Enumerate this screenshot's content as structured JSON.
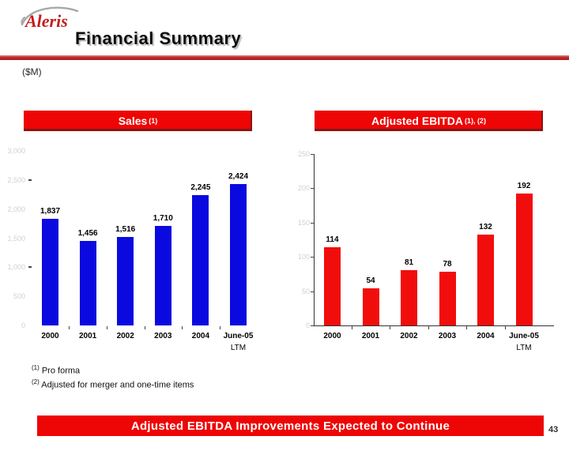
{
  "header": {
    "logo_text": "Aleris",
    "title": "Financial Summary",
    "unit_label": "($M)"
  },
  "chart_data": [
    {
      "type": "bar",
      "title_main": "Sales",
      "title_sup": "(1)",
      "categories": [
        "2000",
        "2001",
        "2002",
        "2003",
        "2004",
        "June-05"
      ],
      "last_category_note": "LTM",
      "values": [
        1837,
        1456,
        1516,
        1710,
        2245,
        2424
      ],
      "value_labels": [
        "1,837",
        "1,456",
        "1,516",
        "1,710",
        "2,245",
        "2,424"
      ],
      "ylim": [
        0,
        3000
      ],
      "ytick_labels": [
        "3,000",
        "2,500",
        "2,000",
        "1,500",
        "1,000",
        "500",
        "0"
      ],
      "bar_color": "#0a0ae0",
      "axis_visible": false,
      "legend": "none",
      "grid": "off"
    },
    {
      "type": "bar",
      "title_main": "Adjusted EBITDA",
      "title_sup": "(1), (2)",
      "categories": [
        "2000",
        "2001",
        "2002",
        "2003",
        "2004",
        "June-05"
      ],
      "last_category_note": "LTM",
      "values": [
        114,
        54,
        81,
        78,
        132,
        192
      ],
      "value_labels": [
        "114",
        "54",
        "81",
        "78",
        "132",
        "192"
      ],
      "ylim": [
        0,
        250
      ],
      "ytick_labels": [
        "250",
        "200",
        "150",
        "100",
        "50",
        "0"
      ],
      "bar_color": "#f20d0d",
      "axis_visible": true,
      "legend": "none",
      "grid": "off"
    }
  ],
  "footnotes": [
    {
      "sup": "(1)",
      "text": "Pro forma"
    },
    {
      "sup": "(2)",
      "text": "Adjusted for merger and one-time items"
    }
  ],
  "banner": {
    "text": "Adjusted EBITDA Improvements Expected to Continue"
  },
  "page_number": "43",
  "colors": {
    "accent_red": "#ee0505",
    "rule_red": "#c22525",
    "logo_red": "#c41e1e",
    "bar_blue": "#0a0ae0",
    "bar_red": "#f20d0d",
    "faint_axis_label": "#ccd2cc"
  }
}
